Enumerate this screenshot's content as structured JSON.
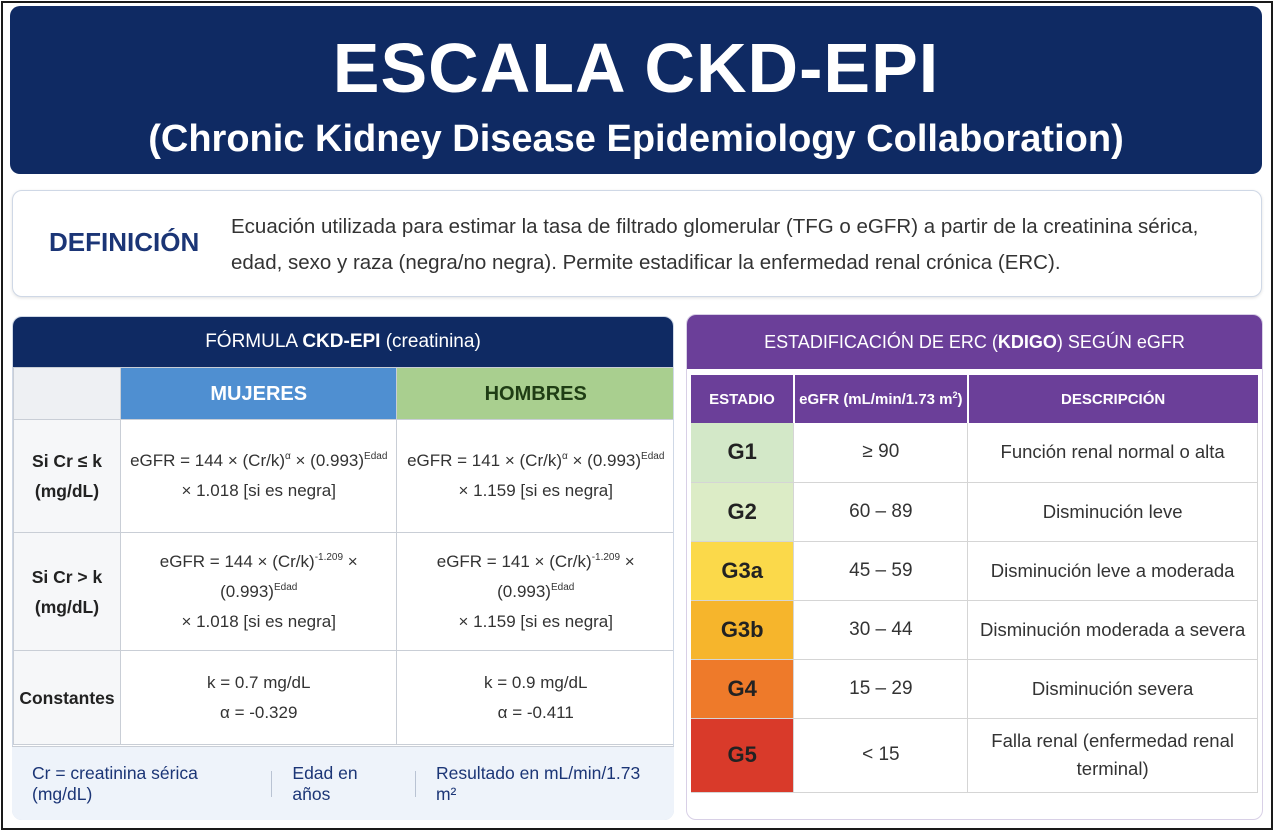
{
  "header": {
    "title": "ESCALA CKD-EPI",
    "subtitle": "(Chronic Kidney Disease Epidemiology Collaboration)",
    "background_color": "#0f2a63"
  },
  "definition": {
    "label": "DEFINICIÓN",
    "text": "Ecuación utilizada para estimar la tasa de filtrado glomerular (TFG o eGFR) a partir de la creatinina sérica, edad, sexo y raza (negra/no negra). Permite estadificar la enfermedad renal crónica (ERC)."
  },
  "formula": {
    "title_prefix": "FÓRMULA ",
    "title_bold": "CKD-EPI",
    "title_suffix": " (creatinina)",
    "col_women": "MUJERES",
    "col_men": "HOMBRES",
    "rows": [
      {
        "label_line1": "Si Cr ≤ k",
        "label_line2": "(mg/dL)",
        "women_a": "eGFR = 144 × (Cr/k)",
        "women_exp1": "α",
        "women_b": " × (0.993)",
        "women_exp2": "Edad",
        "women_line2": "× 1.018 [si es negra]",
        "men_a": "eGFR = 141 × (Cr/k)",
        "men_exp1": "α",
        "men_b": " × (0.993)",
        "men_exp2": "Edad",
        "men_line2": "× 1.159 [si es negra]"
      },
      {
        "label_line1": "Si Cr > k",
        "label_line2": "(mg/dL)",
        "women_a": "eGFR = 144 × (Cr/k)",
        "women_exp1": "-1.209",
        "women_b": " × (0.993)",
        "women_exp2": "Edad",
        "women_line2": "× 1.018 [si es negra]",
        "men_a": "eGFR = 141 × (Cr/k)",
        "men_exp1": "-1.209",
        "men_b": " × (0.993)",
        "men_exp2": "Edad",
        "men_line2": "× 1.159 [si es negra]"
      }
    ],
    "constants": {
      "label": "Constantes",
      "women_k": "k = 0.7 mg/dL",
      "women_alpha": "α = -0.329",
      "men_k": "k = 0.9 mg/dL",
      "men_alpha": "α = -0.411"
    },
    "legend": [
      "Cr = creatinina sérica (mg/dL)",
      "Edad en años",
      "Resultado en mL/min/1.73 m²"
    ],
    "colors": {
      "women": "#4f8fd1",
      "men": "#a9cf8f"
    }
  },
  "staging": {
    "title_prefix": "ESTADIFICACIÓN DE ERC (",
    "title_bold": "KDIGO",
    "title_suffix": ") SEGÚN eGFR",
    "col_stage": "ESTADIO",
    "col_egfr": "eGFR (mL/min/1.73 m",
    "col_egfr_sup": "2",
    "col_egfr_close": ")",
    "col_desc": "DESCRIPCIÓN",
    "rows": [
      {
        "stage": "G1",
        "egfr": "≥ 90",
        "desc": "Función renal normal o alta",
        "color": "#d3e8c8"
      },
      {
        "stage": "G2",
        "egfr": "60 – 89",
        "desc": "Disminución leve",
        "color": "#dcecc6"
      },
      {
        "stage": "G3a",
        "egfr": "45 – 59",
        "desc": "Disminución leve a moderada",
        "color": "#fbd94a"
      },
      {
        "stage": "G3b",
        "egfr": "30 – 44",
        "desc": "Disminución moderada a severa",
        "color": "#f6b52c"
      },
      {
        "stage": "G4",
        "egfr": "15 – 29",
        "desc": "Disminución severa",
        "color": "#ee7a2a"
      },
      {
        "stage": "G5",
        "egfr": "< 15",
        "desc": "Falla renal (enfermedad renal terminal)",
        "color": "#d93a2a"
      }
    ],
    "header_color": "#6b3f99"
  }
}
